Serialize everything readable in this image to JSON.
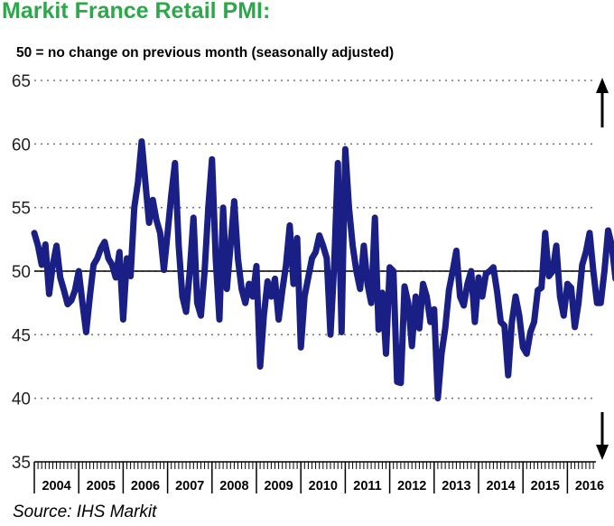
{
  "title": "Markit France Retail PMI:",
  "subtitle": "50 = no change on previous month (seasonally adjusted)",
  "source": "Source: IHS Markit",
  "colors": {
    "title": "#2ca84a",
    "series": "#1a1f86",
    "grid": "#7a7a7a",
    "arrow": "#000000"
  },
  "chart_data": {
    "type": "line",
    "title": "Markit France Retail PMI:",
    "subtitle": "50 = no change on previous month (seasonally adjusted)",
    "xlabel": "",
    "ylabel": "",
    "ylim": [
      35,
      65
    ],
    "yticks": [
      35,
      40,
      45,
      50,
      55,
      60,
      65
    ],
    "reference_line": 50,
    "grid": "dotted horizontal",
    "x_start": "2004-01",
    "year_labels": [
      "2004",
      "2005",
      "2006",
      "2007",
      "2008",
      "2009",
      "2010",
      "2011",
      "2012",
      "2013",
      "2014",
      "2015",
      "2016"
    ],
    "annotations": [
      "up-arrow (top-right)",
      "down-arrow (bottom-right)"
    ],
    "series": [
      {
        "name": "Markit France Retail PMI",
        "values": [
          53.0,
          52.0,
          50.5,
          52.1,
          48.2,
          50.5,
          52.0,
          49.5,
          48.5,
          47.4,
          47.7,
          48.5,
          50.0,
          47.5,
          45.2,
          48.0,
          50.5,
          51.0,
          51.8,
          52.3,
          51.0,
          50.5,
          49.5,
          51.5,
          46.2,
          51.0,
          49.6,
          55.0,
          57.0,
          60.2,
          57.0,
          53.8,
          55.6,
          54.0,
          53.0,
          50.1,
          53.0,
          56.0,
          58.5,
          52.0,
          48.0,
          46.8,
          50.0,
          54.2,
          47.5,
          46.5,
          50.0,
          55.0,
          58.8,
          51.0,
          46.2,
          55.0,
          48.6,
          52.0,
          55.5,
          51.0,
          48.6,
          47.5,
          49.0,
          48.0,
          50.4,
          42.5,
          46.5,
          49.2,
          48.0,
          49.4,
          46.2,
          48.5,
          50.5,
          53.6,
          49.0,
          52.6,
          44.0,
          48.0,
          49.5,
          51.0,
          51.5,
          52.8,
          52.0,
          51.0,
          45.0,
          50.5,
          58.5,
          45.2,
          59.6,
          55.0,
          52.0,
          50.0,
          48.6,
          52.0,
          49.0,
          47.5,
          54.2,
          45.4,
          48.3,
          43.5,
          50.3,
          50.0,
          41.3,
          41.2,
          48.8,
          47.5,
          44.1,
          48.0,
          45.5,
          49.0,
          48.0,
          46.0,
          47.0,
          40.0,
          43.5,
          45.5,
          48.5,
          50.0,
          51.6,
          48.0,
          47.3,
          49.0,
          50.0,
          46.0,
          49.5,
          48.0,
          49.8,
          50.0,
          50.3,
          48.4,
          46.0,
          45.7,
          41.8,
          46.0,
          48.0,
          46.5,
          44.0,
          43.5,
          45.2,
          46.0,
          48.5,
          48.7,
          53.0,
          49.6,
          50.0,
          52.0,
          48.0,
          46.5,
          49.0,
          48.7,
          45.6,
          47.5,
          50.5,
          51.5,
          53.0,
          50.0,
          47.5,
          47.5,
          50.0,
          53.2,
          52.0,
          49.4,
          51.8
        ]
      }
    ]
  }
}
